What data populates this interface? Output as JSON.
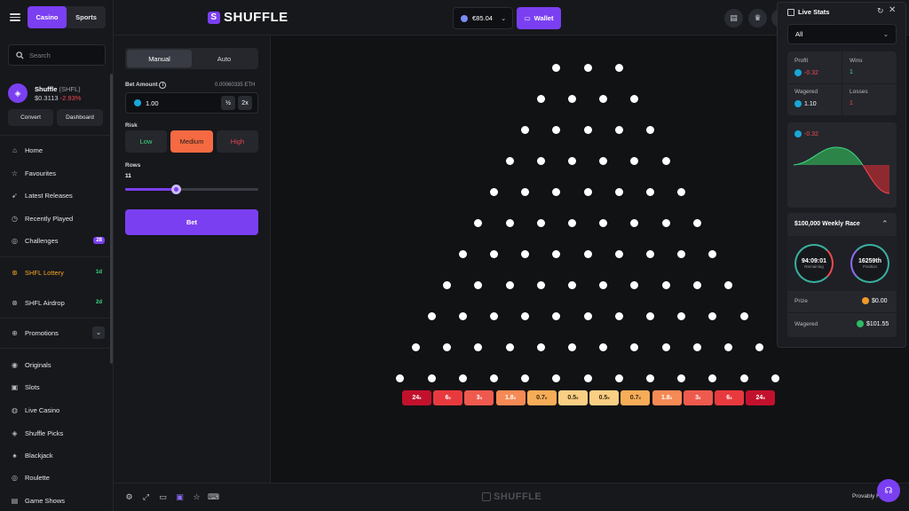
{
  "header": {
    "tabs": [
      {
        "label": "Casino",
        "active": true
      },
      {
        "label": "Sports",
        "active": false
      }
    ],
    "logo_text": "SHUFFLE",
    "balance": "€85.04",
    "wallet_label": "Wallet"
  },
  "sidebar": {
    "search_placeholder": "Search",
    "token": {
      "name": "Shuffle",
      "ticker": "(SHFL)",
      "price": "$0.3113",
      "change": "-2.93%"
    },
    "convert_label": "Convert",
    "dashboard_label": "Dashboard",
    "items": [
      {
        "label": "Home",
        "icon": "home-icon"
      },
      {
        "label": "Favourites",
        "icon": "star-icon"
      },
      {
        "label": "Latest Releases",
        "icon": "rocket-icon"
      },
      {
        "label": "Recently Played",
        "icon": "clock-icon"
      },
      {
        "label": "Challenges",
        "icon": "target-icon",
        "badge": "28"
      },
      {
        "label": "SHFL Lottery",
        "icon": "lottery-icon",
        "badge": "1d"
      },
      {
        "label": "SHFL Airdrop",
        "icon": "airdrop-icon",
        "badge": "2d"
      },
      {
        "label": "Promotions",
        "icon": "gift-icon"
      },
      {
        "label": "Originals",
        "icon": "originals-icon"
      },
      {
        "label": "Slots",
        "icon": "slots-icon"
      },
      {
        "label": "Live Casino",
        "icon": "live-icon"
      },
      {
        "label": "Shuffle Picks",
        "icon": "picks-icon"
      },
      {
        "label": "Blackjack",
        "icon": "cards-icon"
      },
      {
        "label": "Roulette",
        "icon": "roulette-icon"
      },
      {
        "label": "Game Shows",
        "icon": "gameshow-icon"
      }
    ]
  },
  "bet": {
    "modes": [
      {
        "label": "Manual",
        "active": true
      },
      {
        "label": "Auto",
        "active": false
      }
    ],
    "amount_label": "Bet Amount",
    "amount_eth": "0.00060335 ETH",
    "amount_value": "1.00",
    "half_label": "½",
    "double_label": "2x",
    "risk_label": "Risk",
    "risk_options": [
      "Low",
      "Medium",
      "High"
    ],
    "risk_selected": "Medium",
    "rows_label": "Rows",
    "rows_value": "11",
    "bet_label": "Bet"
  },
  "board": {
    "rows": 11,
    "multipliers": [
      {
        "value": "24",
        "color": "#c2112d"
      },
      {
        "value": "6",
        "color": "#e83a3e"
      },
      {
        "value": "3",
        "color": "#ee5a4e"
      },
      {
        "value": "1.8",
        "color": "#f58a55"
      },
      {
        "value": "0.7",
        "color": "#f7ac58"
      },
      {
        "value": "0.5",
        "color": "#f9cf84"
      },
      {
        "value": "0.5",
        "color": "#f9cf84"
      },
      {
        "value": "0.7",
        "color": "#f7ac58"
      },
      {
        "value": "1.8",
        "color": "#f58a55"
      },
      {
        "value": "3",
        "color": "#ee5a4e"
      },
      {
        "value": "6",
        "color": "#e83a3e"
      },
      {
        "value": "24",
        "color": "#c2112d"
      }
    ],
    "multiplier_suffix": "x"
  },
  "footer": {
    "logo_text": "SHUFFLE",
    "provably": "Provably Fa"
  },
  "live_stats": {
    "title": "Live Stats",
    "filter": "All",
    "profit_label": "Profit",
    "profit_value": "-0.32",
    "wins_label": "Wins",
    "wins_value": "1",
    "wagered_label": "Wagered",
    "wagered_value": "1.10",
    "losses_label": "Losses",
    "losses_value": "1",
    "chart_value": "-0.32",
    "race_title": "$100,000 Weekly Race",
    "remaining_value": "94:09:01",
    "remaining_label": "Remaining",
    "position_value": "16259th",
    "position_label": "Position",
    "prize_label": "Prize",
    "prize_value": "$0.00",
    "race_wagered_label": "Wagered",
    "race_wagered_value": "$101.55"
  }
}
